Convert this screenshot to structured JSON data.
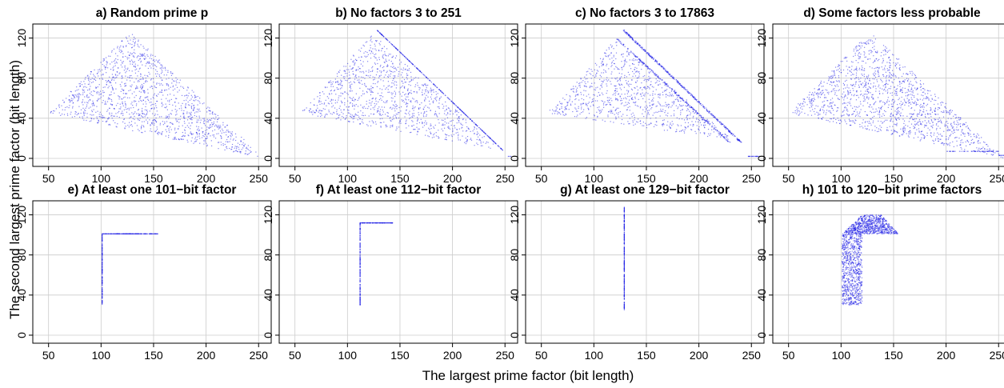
{
  "figure": {
    "xlabel": "The largest prime factor (bit length)",
    "ylabel": "The second largest prime factor (bit length)",
    "point_color": "#1f1fe6",
    "grid_color": "#cccccc"
  },
  "chart_data": [
    {
      "type": "scatter",
      "title": "a) Random prime p",
      "xlim": [
        35,
        262
      ],
      "ylim": [
        -8,
        134
      ],
      "xticks": [
        50,
        100,
        150,
        200,
        250
      ],
      "yticks": [
        0,
        40,
        80,
        120
      ],
      "grid": true,
      "regions": [
        {
          "kind": "triangle",
          "apex": [
            128,
            126
          ],
          "left": [
            50,
            45
          ],
          "right": [
            255,
            0
          ],
          "points": 1400
        }
      ]
    },
    {
      "type": "scatter",
      "title": "b) No factors 3 to 251",
      "xlim": [
        35,
        262
      ],
      "ylim": [
        -8,
        134
      ],
      "xticks": [
        50,
        100,
        150,
        200,
        250
      ],
      "yticks": [
        0,
        40,
        80,
        120
      ],
      "grid": true,
      "regions": [
        {
          "kind": "triangle",
          "apex": [
            124,
            124
          ],
          "left": [
            55,
            45
          ],
          "right": [
            246,
            8
          ],
          "points": 1100
        },
        {
          "kind": "line",
          "from": [
            128,
            128
          ],
          "to": [
            248,
            8
          ],
          "points": 350
        },
        {
          "kind": "line",
          "from": [
            252,
            2
          ],
          "to": [
            256,
            2
          ],
          "points": 4
        }
      ]
    },
    {
      "type": "scatter",
      "title": "c) No factors 3 to 17863",
      "xlim": [
        35,
        262
      ],
      "ylim": [
        -8,
        134
      ],
      "xticks": [
        50,
        100,
        150,
        200,
        250
      ],
      "yticks": [
        0,
        40,
        80,
        120
      ],
      "grid": true,
      "regions": [
        {
          "kind": "triangle",
          "apex": [
            121,
            119
          ],
          "left": [
            55,
            45
          ],
          "right": [
            233,
            18
          ],
          "points": 900
        },
        {
          "kind": "band",
          "from": [
            122,
            119
          ],
          "to": [
            229,
            16
          ],
          "width": 2,
          "points": 260
        },
        {
          "kind": "band",
          "from": [
            128,
            128
          ],
          "to": [
            240,
            16
          ],
          "width": 2,
          "points": 420
        },
        {
          "kind": "line",
          "from": [
            247,
            2
          ],
          "to": [
            258,
            2
          ],
          "points": 25
        }
      ]
    },
    {
      "type": "scatter",
      "title": "d) Some factors less probable",
      "xlim": [
        35,
        262
      ],
      "ylim": [
        -8,
        134
      ],
      "xticks": [
        50,
        100,
        150,
        200,
        250
      ],
      "yticks": [
        0,
        40,
        80,
        120
      ],
      "grid": true,
      "regions": [
        {
          "kind": "triangle",
          "apex": [
            128,
            126
          ],
          "left": [
            50,
            45
          ],
          "right": [
            255,
            0
          ],
          "points": 1500
        },
        {
          "kind": "line",
          "from": [
            200,
            7
          ],
          "to": [
            250,
            7
          ],
          "points": 60
        },
        {
          "kind": "line",
          "from": [
            250,
            3
          ],
          "to": [
            258,
            3
          ],
          "points": 15
        }
      ]
    },
    {
      "type": "scatter",
      "title": "e) At least one 101−bit factor",
      "xlim": [
        35,
        262
      ],
      "ylim": [
        -8,
        134
      ],
      "xticks": [
        50,
        100,
        150,
        200,
        250
      ],
      "yticks": [
        0,
        40,
        80,
        120
      ],
      "grid": true,
      "regions": [
        {
          "kind": "line",
          "from": [
            101,
            30
          ],
          "to": [
            101,
            101
          ],
          "points": 220
        },
        {
          "kind": "line",
          "from": [
            101,
            101
          ],
          "to": [
            154,
            101
          ],
          "points": 220
        }
      ]
    },
    {
      "type": "scatter",
      "title": "f) At least one 112−bit factor",
      "xlim": [
        35,
        262
      ],
      "ylim": [
        -8,
        134
      ],
      "xticks": [
        50,
        100,
        150,
        200,
        250
      ],
      "yticks": [
        0,
        40,
        80,
        120
      ],
      "grid": true,
      "regions": [
        {
          "kind": "line",
          "from": [
            112,
            30
          ],
          "to": [
            112,
            112
          ],
          "points": 220
        },
        {
          "kind": "line",
          "from": [
            112,
            112
          ],
          "to": [
            143,
            112
          ],
          "points": 150
        }
      ]
    },
    {
      "type": "scatter",
      "title": "g) At least one 129−bit factor",
      "xlim": [
        35,
        262
      ],
      "ylim": [
        -8,
        134
      ],
      "xticks": [
        50,
        100,
        150,
        200,
        250
      ],
      "yticks": [
        0,
        40,
        80,
        120
      ],
      "grid": true,
      "regions": [
        {
          "kind": "line",
          "from": [
            129,
            25
          ],
          "to": [
            129,
            128
          ],
          "points": 320
        }
      ]
    },
    {
      "type": "scatter",
      "title": "h) 101 to 120−bit prime factors",
      "xlim": [
        35,
        262
      ],
      "ylim": [
        -8,
        134
      ],
      "xticks": [
        50,
        100,
        150,
        200,
        250
      ],
      "yticks": [
        0,
        40,
        80,
        120
      ],
      "grid": true,
      "regions": [
        {
          "kind": "rect",
          "x": [
            101,
            120
          ],
          "y": [
            30,
            101
          ],
          "points": 900
        },
        {
          "kind": "triangle",
          "apex": [
            120,
            120
          ],
          "left": [
            101,
            101
          ],
          "right": [
            120,
            101
          ],
          "points": 250
        },
        {
          "kind": "rect",
          "x": [
            120,
            138
          ],
          "y": [
            101,
            120
          ],
          "points": 400
        },
        {
          "kind": "triangle",
          "apex": [
            138,
            120
          ],
          "left": [
            138,
            101
          ],
          "right": [
            155,
            101
          ],
          "points": 200
        }
      ]
    }
  ]
}
